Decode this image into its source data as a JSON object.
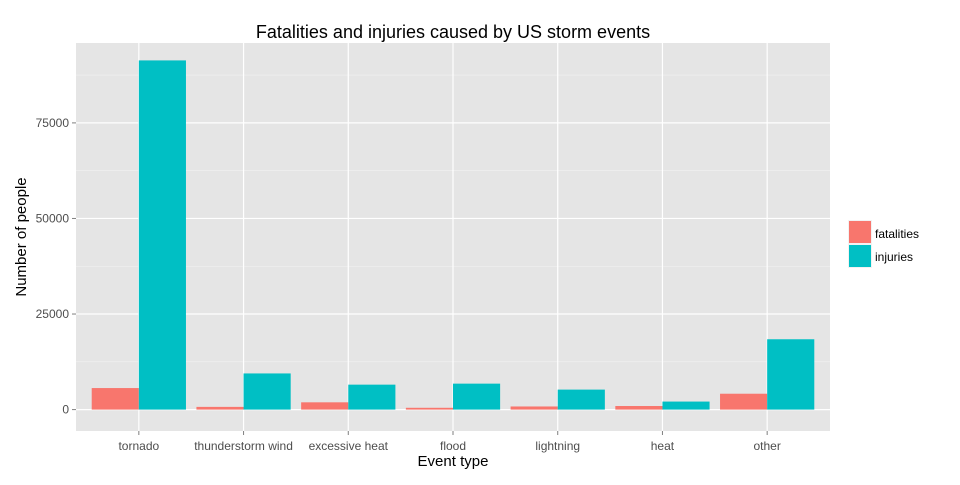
{
  "chart_data": {
    "type": "bar",
    "title": "Fatalities and injuries caused by US storm events",
    "xlabel": "Event type",
    "ylabel": "Number of people",
    "categories": [
      "tornado",
      "thunderstorm wind",
      "excessive heat",
      "flood",
      "lightning",
      "heat",
      "other"
    ],
    "series": [
      {
        "name": "fatalities",
        "color": "#F8766D",
        "values": [
          5633,
          709,
          1903,
          470,
          816,
          937,
          4150
        ]
      },
      {
        "name": "injuries",
        "color": "#00BFC4",
        "values": [
          91346,
          9458,
          6525,
          6789,
          5230,
          2100,
          18400
        ]
      }
    ],
    "ylim": [
      -5600,
      95900
    ],
    "yticks": [
      0,
      25000,
      50000,
      75000
    ],
    "ytick_labels": [
      "0",
      "25000",
      "50000",
      "75000"
    ],
    "grid": true,
    "legend_position": "right",
    "panel_background": "#E5E5E5"
  }
}
